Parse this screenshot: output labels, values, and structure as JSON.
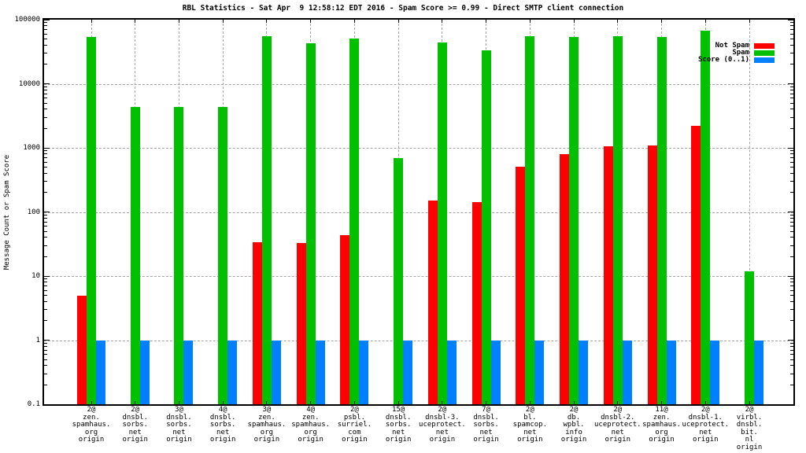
{
  "title": "RBL Statistics - Sat Apr  9 12:58:12 EDT 2016 - Spam Score >= 0.99 - Direct SMTP client connection",
  "y_axis": {
    "label": "Message Count or Spam Score",
    "ticks": [
      "100000",
      "10000",
      "1000",
      "100",
      "10",
      "1",
      "0.1"
    ],
    "scale": "log",
    "range_low": 0.1,
    "range_high": 100000
  },
  "legend": {
    "items": [
      {
        "label": "Not Spam",
        "color": "#ff0000"
      },
      {
        "label": "Spam",
        "color": "#00c000"
      },
      {
        "label": "Score (0..1)",
        "color": "#0080ff"
      }
    ]
  },
  "chart_data": {
    "type": "bar",
    "title": "RBL Statistics - Sat Apr  9 12:58:12 EDT 2016 - Spam Score >= 0.99 - Direct SMTP client connection",
    "xlabel": "",
    "ylabel": "Message Count or Spam Score",
    "y_scale": "log",
    "ylim": [
      0.1,
      100000
    ],
    "grid": true,
    "legend_position": "top-right-inside",
    "categories": [
      [
        "2@",
        "zen.",
        "spamhaus.",
        "org",
        "origin"
      ],
      [
        "2@",
        "dnsbl.",
        "sorbs.",
        "net",
        "origin"
      ],
      [
        "3@",
        "dnsbl.",
        "sorbs.",
        "net",
        "origin"
      ],
      [
        "4@",
        "dnsbl.",
        "sorbs.",
        "net",
        "origin"
      ],
      [
        "3@",
        "zen.",
        "spamhaus.",
        "org",
        "origin"
      ],
      [
        "4@",
        "zen.",
        "spamhaus.",
        "org",
        "origin"
      ],
      [
        "2@",
        "psbl.",
        "surriel.",
        "com",
        "origin"
      ],
      [
        "15@",
        "dnsbl.",
        "sorbs.",
        "net",
        "origin"
      ],
      [
        "2@",
        "dnsbl-3.",
        "uceprotect.",
        "net",
        "origin"
      ],
      [
        "7@",
        "dnsbl.",
        "sorbs.",
        "net",
        "origin"
      ],
      [
        "2@",
        "bl.",
        "spamcop.",
        "net",
        "origin"
      ],
      [
        "2@",
        "db.",
        "wpbl.",
        "info",
        "origin"
      ],
      [
        "2@",
        "dnsbl-2.",
        "uceprotect.",
        "net",
        "origin"
      ],
      [
        "11@",
        "zen.",
        "spamhaus.",
        "org",
        "origin"
      ],
      [
        "2@",
        "dnsbl-1.",
        "uceprotect.",
        "net",
        "origin"
      ],
      [
        "2@",
        "virbl.",
        "dnsbl.",
        "bit.",
        "nl",
        "origin"
      ]
    ],
    "series": [
      {
        "name": "Not Spam",
        "color": "#ff0000",
        "values": [
          5,
          0,
          0,
          0,
          34,
          33,
          43,
          0,
          150,
          143,
          510,
          800,
          1050,
          1080,
          2200,
          0
        ]
      },
      {
        "name": "Spam",
        "color": "#00c000",
        "values": [
          54000,
          4400,
          4400,
          4400,
          56000,
          43000,
          51000,
          690,
          44000,
          33000,
          55000,
          53000,
          56000,
          53000,
          67000,
          12
        ]
      },
      {
        "name": "Score (0..1)",
        "color": "#0080ff",
        "values": [
          1,
          1,
          1,
          1,
          1,
          1,
          1,
          1,
          1,
          1,
          1,
          1,
          1,
          1,
          1,
          1
        ]
      }
    ]
  }
}
